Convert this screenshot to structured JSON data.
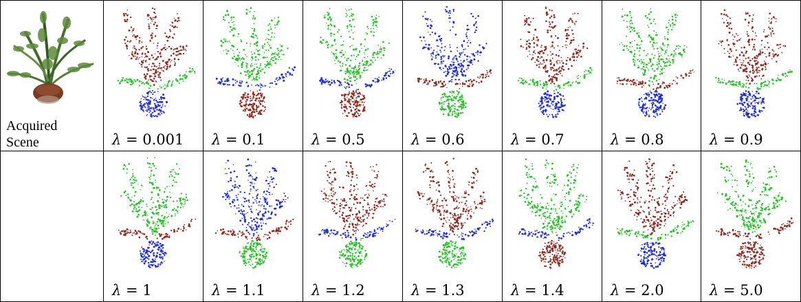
{
  "scene": {
    "label_line1": "Acquired",
    "label_line2": "Scene"
  },
  "rows": [
    {
      "cells": [
        {
          "lambda": "0.001",
          "colors": [
            "#8b2a20",
            "#1f2ecc",
            "#2bbd2b"
          ]
        },
        {
          "lambda": "0.1",
          "colors": [
            "#2bbd2b",
            "#8b2a20",
            "#1f2ecc"
          ]
        },
        {
          "lambda": "0.5",
          "colors": [
            "#2bbd2b",
            "#8b2a20",
            "#1f2ecc"
          ]
        },
        {
          "lambda": "0.6",
          "colors": [
            "#1f2ecc",
            "#2bbd2b",
            "#8b2a20"
          ]
        },
        {
          "lambda": "0.7",
          "colors": [
            "#8b2a20",
            "#1f2ecc",
            "#2bbd2b"
          ]
        },
        {
          "lambda": "0.8",
          "colors": [
            "#2bbd2b",
            "#1f2ecc",
            "#8b2a20"
          ]
        },
        {
          "lambda": "0.9",
          "colors": [
            "#8b2a20",
            "#1f2ecc",
            "#2bbd2b"
          ]
        }
      ]
    },
    {
      "cells": [
        {
          "lambda": "1",
          "colors": [
            "#2bbd2b",
            "#1f2ecc",
            "#8b2a20"
          ]
        },
        {
          "lambda": "1.1",
          "colors": [
            "#1f2ecc",
            "#2bbd2b",
            "#8b2a20"
          ]
        },
        {
          "lambda": "1.2",
          "colors": [
            "#8b2a20",
            "#2bbd2b",
            "#1f2ecc"
          ]
        },
        {
          "lambda": "1.3",
          "colors": [
            "#8b2a20",
            "#2bbd2b",
            "#1f2ecc"
          ]
        },
        {
          "lambda": "1.4",
          "colors": [
            "#2bbd2b",
            "#8b2a20",
            "#1f2ecc"
          ]
        },
        {
          "lambda": "2.0",
          "colors": [
            "#8b2a20",
            "#1f2ecc",
            "#2bbd2b"
          ]
        },
        {
          "lambda": "5.0",
          "colors": [
            "#2bbd2b",
            "#8b2a20",
            "#8b2a20"
          ]
        }
      ]
    }
  ]
}
